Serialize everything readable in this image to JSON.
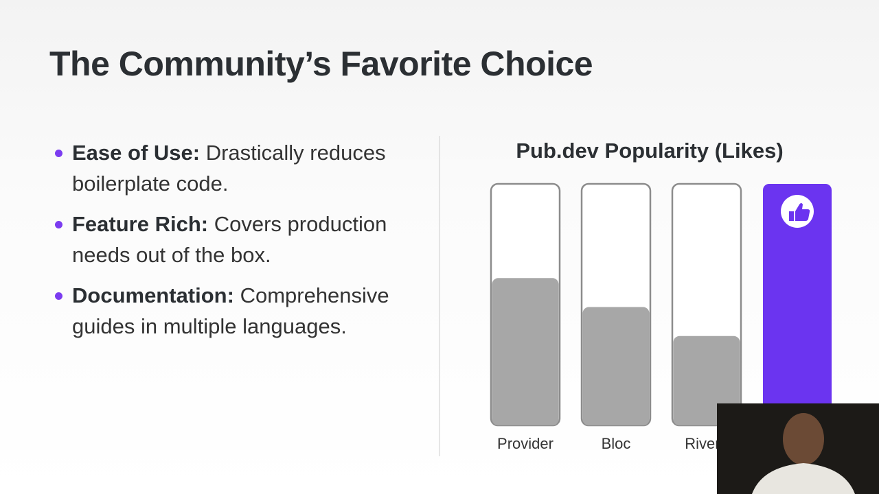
{
  "title": "The Community’s Favorite Choice",
  "bullets": [
    {
      "term": "Ease of Use:",
      "text": "Drastically reduces boilerplate code."
    },
    {
      "term": "Feature Rich:",
      "text": "Covers production needs out of the box."
    },
    {
      "term": "Documentation:",
      "text": "Comprehensive guides in multiple languages."
    }
  ],
  "chart_data": {
    "type": "bar",
    "title": "Pub.dev Popularity (Likes)",
    "categories": [
      "Provider",
      "Bloc",
      "Riverp",
      null
    ],
    "values": [
      61,
      49,
      37,
      100
    ],
    "colors": [
      "#a7a7a7",
      "#a7a7a7",
      "#a7a7a7",
      "#6b34f0"
    ],
    "ylim": [
      0,
      100
    ]
  }
}
